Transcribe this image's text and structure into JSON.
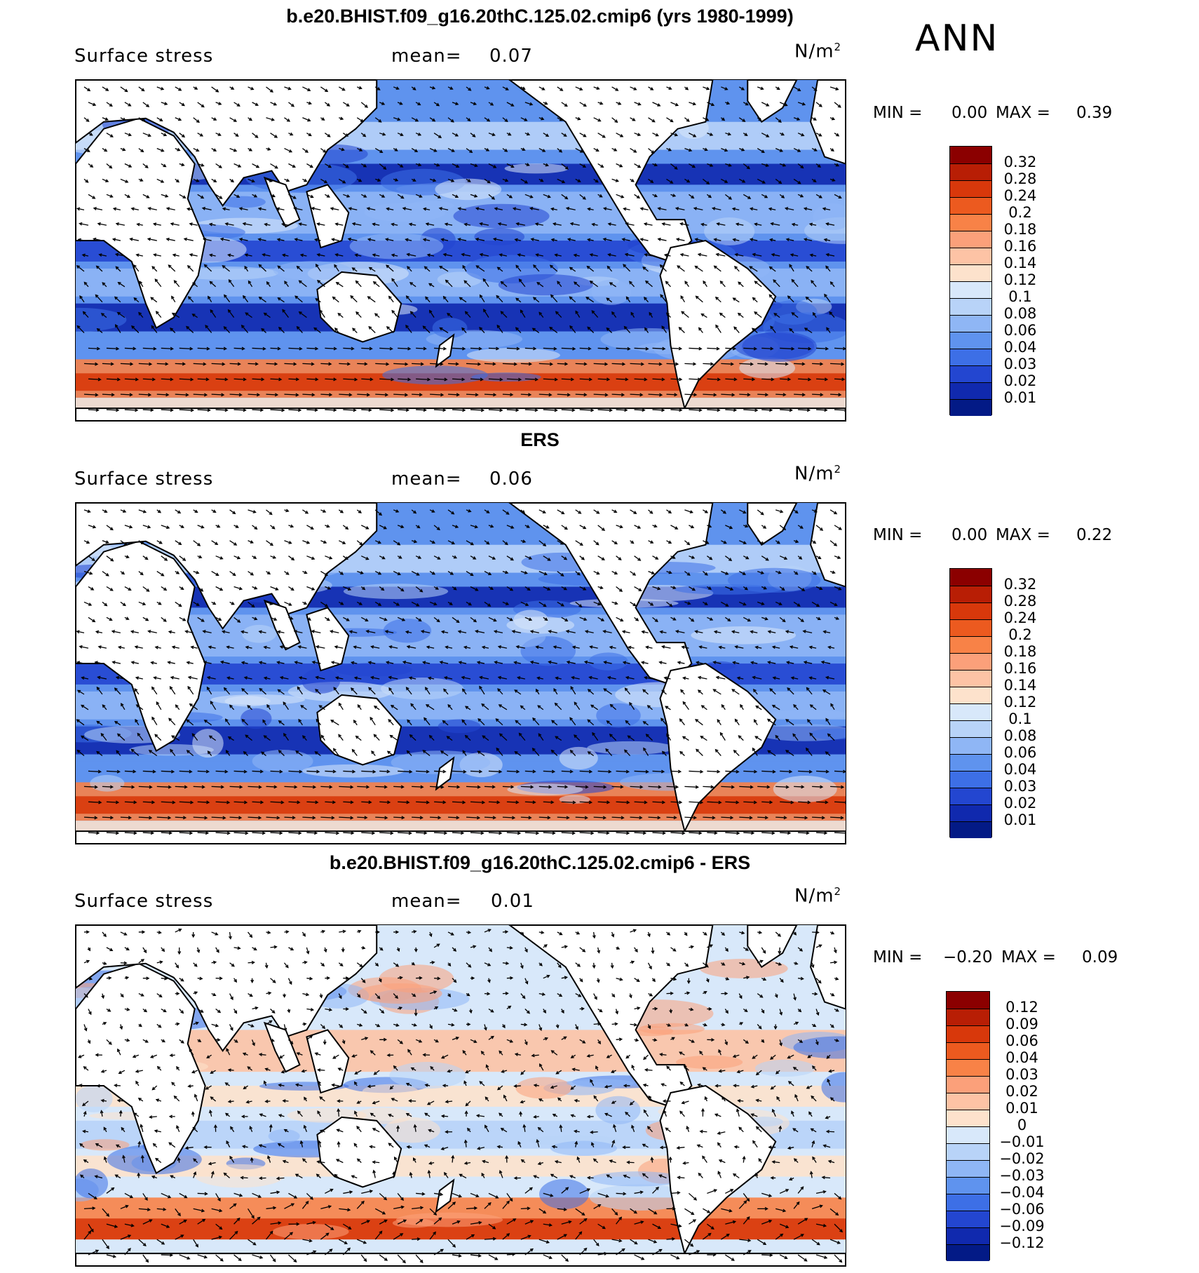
{
  "season": "ANN",
  "panels": [
    {
      "title": "b.e20.BHIST.f09_g16.20thC.125.02.cmip6 (yrs 1980-1999)",
      "variable": "Surface stress",
      "mean_label": "mean=",
      "mean_value": "0.07",
      "units": "N/m",
      "units_sup": "2",
      "min_label": "MIN =",
      "min_value": "0.00",
      "max_label": "MAX =",
      "max_value": "0.39",
      "colorbar_labels": [
        "0.32",
        "0.28",
        "0.24",
        "0.2",
        "0.18",
        "0.16",
        "0.14",
        "0.12",
        "0.1",
        "0.08",
        "0.06",
        "0.04",
        "0.03",
        "0.02",
        "0.01"
      ],
      "colorbar_colors": [
        "#8b0000",
        "#b81e05",
        "#d8380b",
        "#ec5a1f",
        "#f88247",
        "#fba07a",
        "#fdc3a5",
        "#fde2cc",
        "#d8e8fa",
        "#b8d3f8",
        "#8fb6f5",
        "#5f93ee",
        "#3d6fe6",
        "#2346d0",
        "#1029ae",
        "#031a86"
      ],
      "map_style": "model"
    },
    {
      "title": "ERS",
      "variable": "Surface stress",
      "mean_label": "mean=",
      "mean_value": "0.06",
      "units": "N/m",
      "units_sup": "2",
      "min_label": "MIN =",
      "min_value": "0.00",
      "max_label": "MAX =",
      "max_value": "0.22",
      "colorbar_labels": [
        "0.32",
        "0.28",
        "0.24",
        "0.2",
        "0.18",
        "0.16",
        "0.14",
        "0.12",
        "0.1",
        "0.08",
        "0.06",
        "0.04",
        "0.03",
        "0.02",
        "0.01"
      ],
      "colorbar_colors": [
        "#8b0000",
        "#b81e05",
        "#d8380b",
        "#ec5a1f",
        "#f88247",
        "#fba07a",
        "#fdc3a5",
        "#fde2cc",
        "#d8e8fa",
        "#b8d3f8",
        "#8fb6f5",
        "#5f93ee",
        "#3d6fe6",
        "#2346d0",
        "#1029ae",
        "#031a86"
      ],
      "map_style": "obs"
    },
    {
      "title": "b.e20.BHIST.f09_g16.20thC.125.02.cmip6 - ERS",
      "variable": "Surface stress",
      "mean_label": "mean=",
      "mean_value": "0.01",
      "units": "N/m",
      "units_sup": "2",
      "min_label": "MIN =",
      "min_value": "−0.20",
      "max_label": "MAX =",
      "max_value": "0.09",
      "colorbar_labels": [
        "0.12",
        "0.09",
        "0.06",
        "0.04",
        "0.03",
        "0.02",
        "0.01",
        "0",
        "−0.01",
        "−0.02",
        "−0.03",
        "−0.04",
        "−0.06",
        "−0.09",
        "−0.12"
      ],
      "colorbar_colors": [
        "#8b0000",
        "#b81e05",
        "#d8380b",
        "#ec5a1f",
        "#f88247",
        "#fba07a",
        "#fdc3a5",
        "#fde2cc",
        "#d8e8fa",
        "#b8d3f8",
        "#8fb6f5",
        "#5f93ee",
        "#3d6fe6",
        "#2346d0",
        "#1029ae",
        "#031a86"
      ],
      "map_style": "diff"
    }
  ]
}
